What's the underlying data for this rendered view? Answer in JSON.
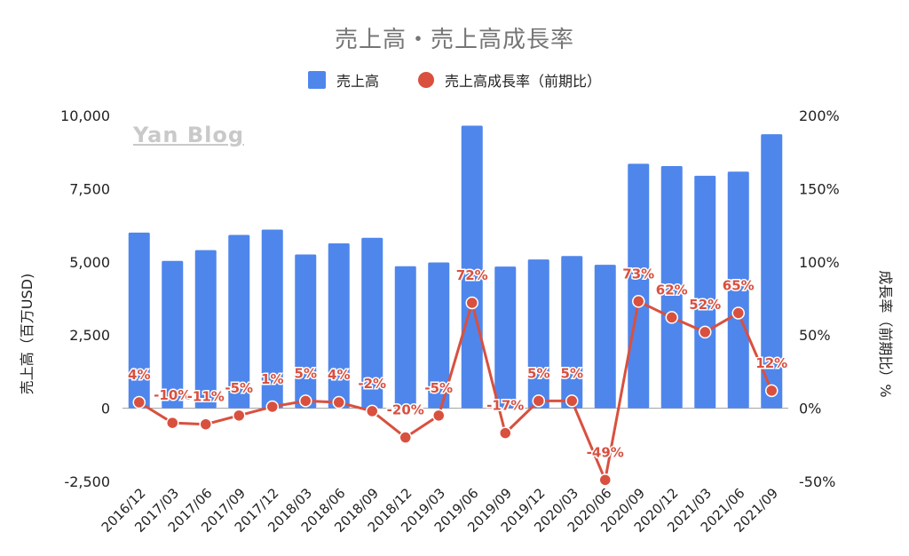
{
  "title": "売上高・売上高成長率",
  "watermark": "Yan Blog",
  "colors": {
    "bar": "#4f86ec",
    "line": "#d9503f",
    "grid": "#e0e0e0",
    "axis_text": "#222222"
  },
  "legend": [
    {
      "label": "売上高",
      "type": "bar"
    },
    {
      "label": "売上高成長率（前期比）",
      "type": "dot"
    }
  ],
  "axes": {
    "left_label": "売上高（百万USD)",
    "right_label": "成長率（前期比）%",
    "left_ticks": [
      "10,000",
      "7,500",
      "5,000",
      "2,500",
      "0",
      "-2,500"
    ],
    "right_ticks": [
      "200%",
      "150%",
      "100%",
      "50%",
      "0%",
      "-50%"
    ]
  },
  "chart_data": {
    "type": "bar",
    "title": "売上高・売上高成長率",
    "categories": [
      "2016/12",
      "2017/03",
      "2017/06",
      "2017/09",
      "2017/12",
      "2018/03",
      "2018/06",
      "2018/09",
      "2018/12",
      "2019/03",
      "2019/06",
      "2019/09",
      "2019/12",
      "2020/03",
      "2020/06",
      "2020/09",
      "2020/12",
      "2021/03",
      "2021/06",
      "2021/09"
    ],
    "series": [
      {
        "name": "売上高",
        "type": "bar",
        "axis": "left",
        "values": [
          6000,
          5030,
          5400,
          5920,
          6100,
          5250,
          5630,
          5820,
          4850,
          4980,
          9650,
          4840,
          5080,
          5200,
          4900,
          8350,
          8270,
          7940,
          8080,
          9360
        ]
      },
      {
        "name": "売上高成長率（前期比）",
        "type": "line",
        "axis": "right",
        "values": [
          4,
          -10,
          -11,
          -5,
          1,
          5,
          4,
          -2,
          -20,
          -5,
          72,
          -17,
          5,
          5,
          -49,
          73,
          62,
          52,
          65,
          12
        ],
        "labels": [
          "4%",
          "-10%",
          "-11%",
          "-5%",
          "1%",
          "5%",
          "4%",
          "-2%",
          "-20%",
          "-5%",
          "72%",
          "-17%",
          "5%",
          "5%",
          "-49%",
          "73%",
          "62%",
          "52%",
          "65%",
          "12%"
        ]
      }
    ],
    "ylim_left": [
      -2500,
      10000
    ],
    "ylim_right": [
      -50,
      200
    ],
    "ylabel_left": "売上高（百万USD)",
    "ylabel_right": "成長率（前期比）%",
    "grid": false,
    "legend_position": "top"
  }
}
